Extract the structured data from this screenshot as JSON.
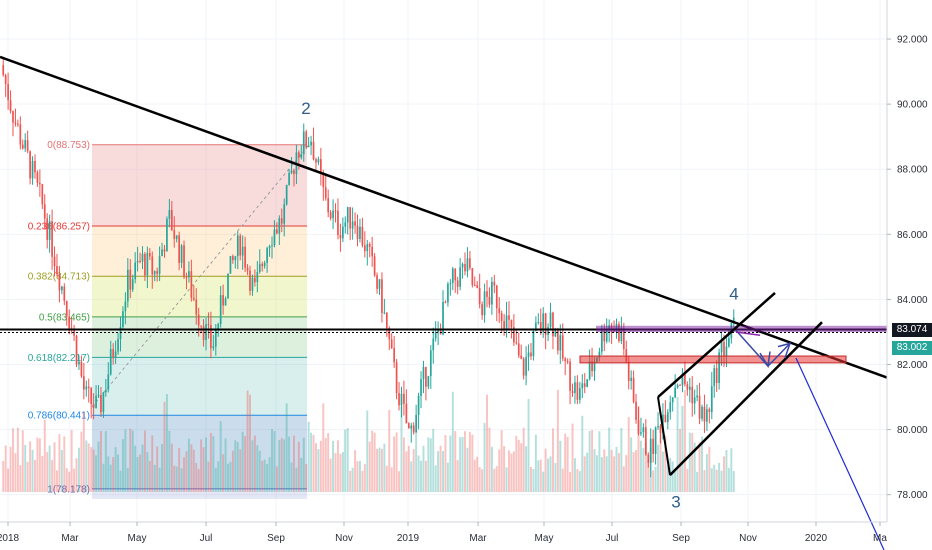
{
  "chart_data": {
    "type": "candlestick",
    "instrument_hint": "",
    "x_tick_labels": [
      "2018",
      "Mar",
      "May",
      "Jul",
      "Sep",
      "Nov",
      "2019",
      "Mar",
      "May",
      "Jul",
      "Sep",
      "Nov",
      "2020",
      "Ma"
    ],
    "y_tick_labels": [
      "92.000",
      "90.000",
      "88.000",
      "86.000",
      "84.000",
      "82.000",
      "80.000",
      "78.000"
    ],
    "y_ticks": [
      92,
      90,
      88,
      86,
      84,
      82,
      80,
      78
    ],
    "ylim": [
      76.3,
      93.2
    ],
    "price_tags": [
      {
        "label": "83.074",
        "value": 83.074,
        "color": "#131722"
      },
      {
        "label": "83.002",
        "value": 83.002,
        "color": "#26a69a"
      }
    ],
    "horizontal_level": 83.074,
    "fibonacci": {
      "levels": [
        {
          "ratio": 0,
          "label": "0(88.753)",
          "price": 88.753,
          "color": "#e57373"
        },
        {
          "ratio": 0.236,
          "label": "0.236(86.257)",
          "price": 86.257,
          "color": "#e53935"
        },
        {
          "ratio": 0.382,
          "label": "0.382(84.713)",
          "price": 84.713,
          "color": "#9e9d24"
        },
        {
          "ratio": 0.5,
          "label": "0.5(83.465)",
          "price": 83.465,
          "color": "#43a047"
        },
        {
          "ratio": 0.618,
          "label": "0.618(82.217)",
          "price": 82.217,
          "color": "#26a69a"
        },
        {
          "ratio": 0.786,
          "label": "0.786(80.441)",
          "price": 80.441,
          "color": "#1e88e5"
        },
        {
          "ratio": 1,
          "label": "1(78.178)",
          "price": 78.178,
          "color": "#5c6bc0"
        }
      ]
    },
    "wave_labels": [
      {
        "label": "2",
        "price": 89.7
      },
      {
        "label": "4",
        "price": 84.0
      },
      {
        "label": "3",
        "price": 77.6
      }
    ],
    "price_path": [
      91.2,
      89.5,
      88.2,
      86.8,
      85.0,
      83.2,
      81.0,
      80.6,
      82.5,
      84.5,
      85.2,
      84.8,
      86.5,
      85.0,
      83.6,
      82.5,
      84.5,
      85.8,
      84.2,
      85.9,
      86.5,
      88.6,
      89.0,
      87.0,
      86.2,
      86.6,
      85.5,
      84.0,
      81.5,
      79.8,
      81.5,
      83.0,
      84.5,
      85.0,
      83.8,
      84.2,
      83.2,
      81.8,
      83.0,
      83.5,
      82.0,
      81.0,
      82.0,
      83.3,
      83.0,
      80.5,
      79.2,
      80.5,
      81.6,
      81.2,
      80.2,
      82.3,
      83.1
    ]
  }
}
